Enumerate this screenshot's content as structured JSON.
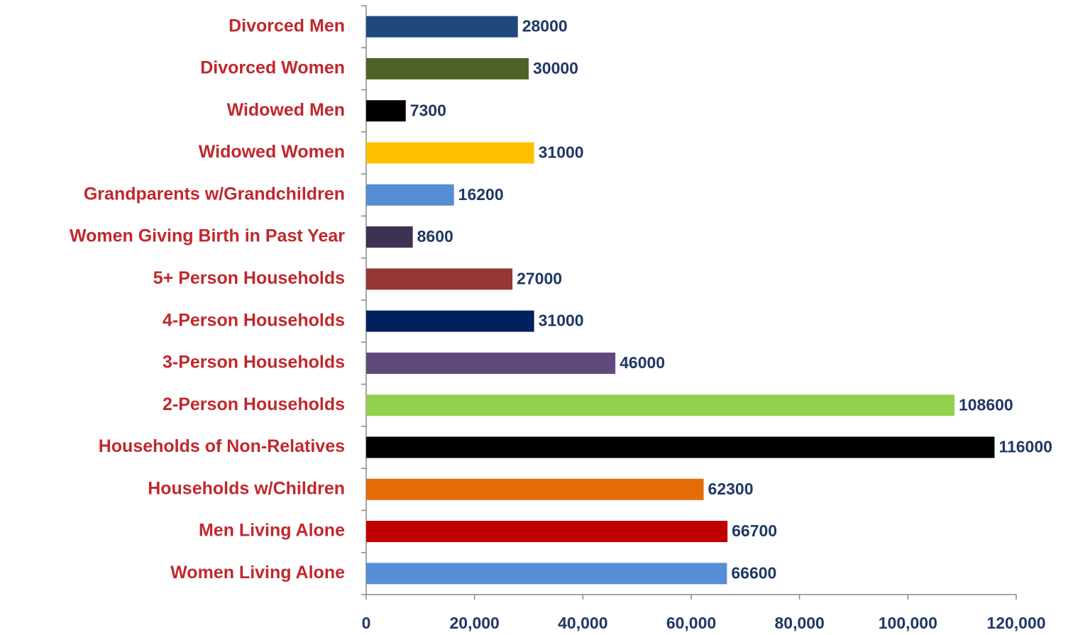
{
  "chart_data": {
    "type": "hbar",
    "categories": [
      "Divorced Men",
      "Divorced Women",
      "Widowed Men",
      "Widowed Women",
      "Grandparents w/Grandchildren",
      "Women Giving Birth in Past Year",
      "5+ Person Households",
      "4-Person Households",
      "3-Person Households",
      "2-Person Households",
      "Households of Non-Relatives",
      "Households w/Children",
      "Men Living Alone",
      "Women Living Alone"
    ],
    "values": [
      28000,
      30000,
      7300,
      31000,
      16200,
      8600,
      27000,
      31000,
      46000,
      108600,
      116000,
      62300,
      66700,
      66600
    ],
    "colors": [
      "#1f497d",
      "#4f6228",
      "#000000",
      "#ffc000",
      "#558ed5",
      "#3f3151",
      "#953735",
      "#002060",
      "#604a7b",
      "#92d050",
      "#000000",
      "#e36c09",
      "#c00000",
      "#558ed5"
    ],
    "xlim": [
      0,
      120000
    ],
    "xticks": [
      0,
      {
        "value": 20000,
        "label": "20,000"
      },
      {
        "value": 40000,
        "label": "40,000"
      },
      {
        "value": 60000,
        "label": "60,000"
      },
      {
        "value": 80000,
        "label": "80,000"
      },
      {
        "value": 100000,
        "label": "100,000"
      },
      {
        "value": 120000,
        "label": "120,000"
      }
    ],
    "grid": false
  }
}
